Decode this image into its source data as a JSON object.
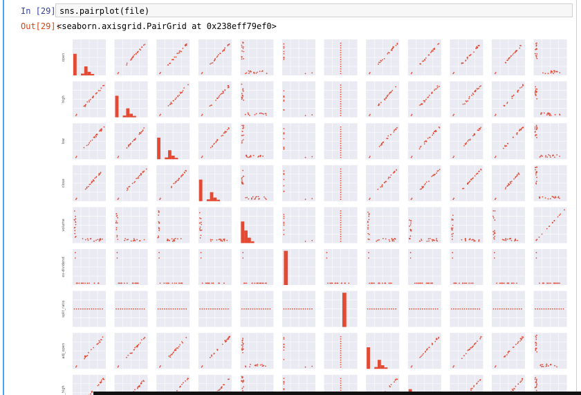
{
  "cell": {
    "prompt_in": "In [29]:",
    "code": "sns.pairplot(file)",
    "prompt_out": "Out[29]:",
    "output": "<seaborn.axisgrid.PairGrid at 0x238eff79ef0>"
  },
  "pairplot": {
    "row_labels": [
      "open",
      "high",
      "low",
      "close",
      "volume",
      "ex-dividend",
      "split_ratio",
      "adj_open",
      "adj_high"
    ]
  }
}
